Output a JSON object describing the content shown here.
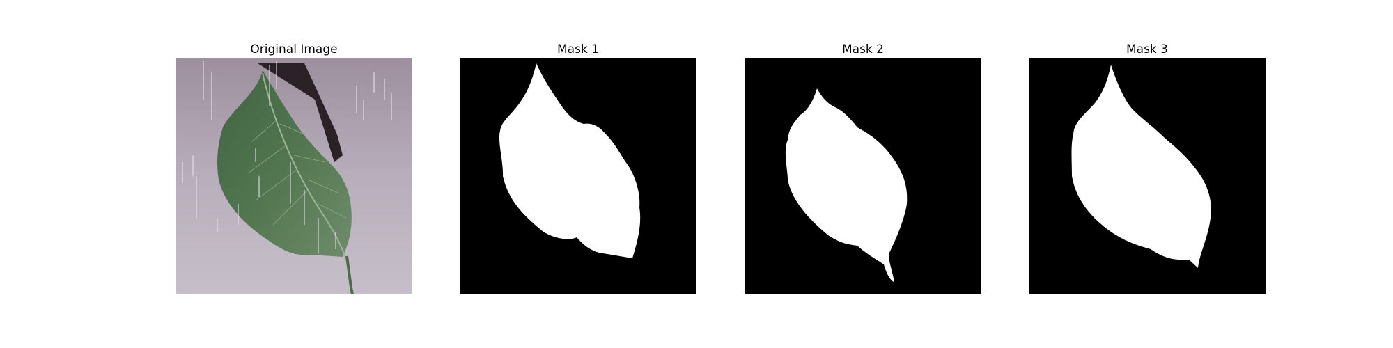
{
  "panels": [
    {
      "title": "Original Image"
    },
    {
      "title": "Mask 1"
    },
    {
      "title": "Mask 2"
    },
    {
      "title": "Mask 3"
    }
  ],
  "colors": {
    "background": "#ffffff",
    "mask_background": "#000000",
    "mask_foreground": "#ffffff",
    "leaf_green": "#4a6a44",
    "photo_background": "#c2b9c4"
  }
}
